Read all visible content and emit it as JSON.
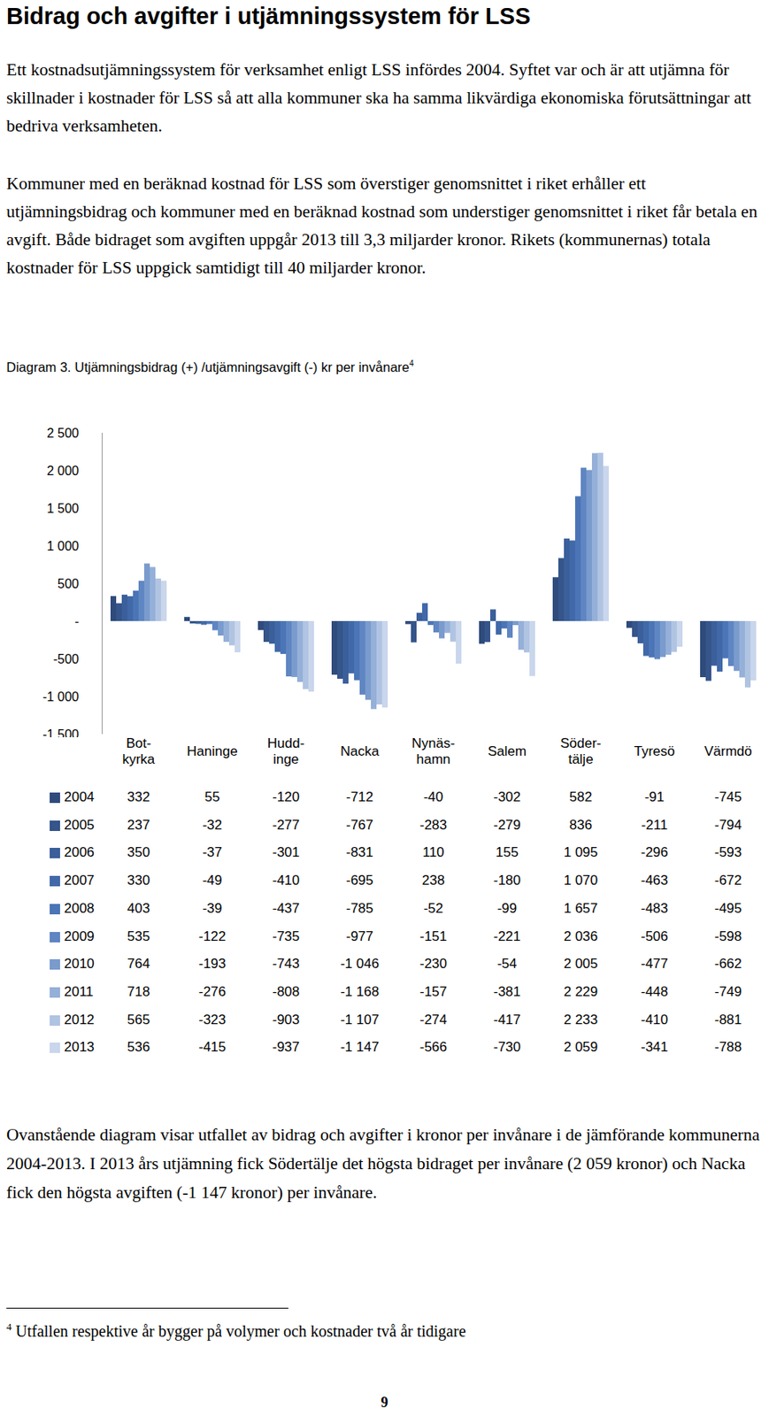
{
  "heading": "Bidrag och avgifter i utjämningssystem för LSS",
  "paragraphs": [
    "Ett kostnadsutjämningssystem för verksamhet enligt LSS infördes 2004. Syftet var och är att utjämna för skillnader i kostnader för LSS så att alla kommuner ska ha samma likvärdiga ekonomiska förutsättningar att bedriva verksamheten.",
    "Kommuner med en beräknad kostnad för LSS som överstiger genomsnittet i riket erhåller ett utjämningsbidrag och kommuner med en beräknad kostnad som understiger genomsnittet i riket får betala en avgift. Både bidraget som avgiften uppgår 2013 till 3,3 miljarder kronor. Rikets (kommunernas) totala kostnader för LSS uppgick samtidigt till 40 miljarder kronor."
  ],
  "chart_data": {
    "type": "bar",
    "title": "Diagram 3. Utjämningsbidrag (+) /utjämningsavgift (-) kr per invånare",
    "title_note": "4",
    "categories": [
      "Bot-\nkyrka",
      "Haninge",
      "Hudd-\ninge",
      "Nacka",
      "Nynäs-\nhamn",
      "Salem",
      "Söder-\ntälje",
      "Tyresö",
      "Värmdö"
    ],
    "ylim": [
      -1500,
      2500
    ],
    "yticks": [
      {
        "value": 2500,
        "label": "2 500"
      },
      {
        "value": 2000,
        "label": "2 000"
      },
      {
        "value": 1500,
        "label": "1 500"
      },
      {
        "value": 1000,
        "label": "1 000"
      },
      500,
      {
        "value": 0,
        "label": "-"
      },
      -500,
      {
        "value": -1000,
        "label": "-1 000"
      },
      {
        "value": -1500,
        "label": "-1 500"
      }
    ],
    "grid": false,
    "series": [
      {
        "name": "2004",
        "color": "#2f4b7c",
        "values": [
          332,
          55,
          -120,
          -712,
          -40,
          -302,
          582,
          -91,
          -745
        ],
        "value_labels": [
          "332",
          "55",
          "-120",
          "-712",
          "-40",
          "-302",
          "582",
          "-91",
          "-745"
        ]
      },
      {
        "name": "2005",
        "color": "#35558b",
        "values": [
          237,
          -32,
          -277,
          -767,
          -283,
          -279,
          836,
          -211,
          -794
        ],
        "value_labels": [
          "237",
          "-32",
          "-277",
          "-767",
          "-283",
          "-279",
          "836",
          "-211",
          "-794"
        ]
      },
      {
        "name": "2006",
        "color": "#3b5f9a",
        "values": [
          350,
          -37,
          -301,
          -831,
          110,
          155,
          1095,
          -296,
          -593
        ],
        "value_labels": [
          "350",
          "-37",
          "-301",
          "-831",
          "110",
          "155",
          "1 095",
          "-296",
          "-593"
        ]
      },
      {
        "name": "2007",
        "color": "#4169a9",
        "values": [
          330,
          -49,
          -410,
          -695,
          238,
          -180,
          1070,
          -463,
          -672
        ],
        "value_labels": [
          "330",
          "-49",
          "-410",
          "-695",
          "238",
          "-180",
          "1 070",
          "-463",
          "-672"
        ]
      },
      {
        "name": "2008",
        "color": "#4b75b7",
        "values": [
          403,
          -39,
          -437,
          -785,
          -52,
          -99,
          1657,
          -483,
          -495
        ],
        "value_labels": [
          "403",
          "-39",
          "-437",
          "-785",
          "-52",
          "-99",
          "1 657",
          "-483",
          "-495"
        ]
      },
      {
        "name": "2009",
        "color": "#5f86c2",
        "values": [
          535,
          -122,
          -735,
          -977,
          -151,
          -221,
          2036,
          -506,
          -598
        ],
        "value_labels": [
          "535",
          "-122",
          "-735",
          "-977",
          "-151",
          "-221",
          "2 036",
          "-506",
          "-598"
        ]
      },
      {
        "name": "2010",
        "color": "#7a9bcd",
        "values": [
          764,
          -193,
          -743,
          -1046,
          -230,
          -54,
          2005,
          -477,
          -662
        ],
        "value_labels": [
          "764",
          "-193",
          "-743",
          "-1 046",
          "-230",
          "-54",
          "2 005",
          "-477",
          "-662"
        ]
      },
      {
        "name": "2011",
        "color": "#95b0d8",
        "values": [
          718,
          -276,
          -808,
          -1168,
          -157,
          -381,
          2229,
          -448,
          -749
        ],
        "value_labels": [
          "718",
          "-276",
          "-808",
          "-1 168",
          "-157",
          "-381",
          "2 229",
          "-448",
          "-749"
        ]
      },
      {
        "name": "2012",
        "color": "#b0c4e2",
        "values": [
          565,
          -323,
          -903,
          -1107,
          -274,
          -417,
          2233,
          -410,
          -881
        ],
        "value_labels": [
          "565",
          "-323",
          "-903",
          "-1 107",
          "-274",
          "-417",
          "2 233",
          "-410",
          "-881"
        ]
      },
      {
        "name": "2013",
        "color": "#c9d6ec",
        "values": [
          536,
          -415,
          -937,
          -1147,
          -566,
          -730,
          2059,
          -341,
          -788
        ],
        "value_labels": [
          "536",
          "-415",
          "-937",
          "-1 147",
          "-566",
          "-730",
          "2 059",
          "-341",
          "-788"
        ]
      }
    ]
  },
  "after_text": "Ovanstående diagram visar utfallet av bidrag och avgifter i kronor per invånare i de jämförande kommunerna 2004-2013. I 2013 års utjämning fick Södertälje det högsta bidraget per invånare (2 059 kronor) och Nacka fick den högsta avgiften (-1 147 kronor) per invånare.",
  "footnote": {
    "mark": "4",
    "text": "Utfallen respektive år bygger på volymer och kostnader två år tidigare"
  },
  "page_number": "9"
}
